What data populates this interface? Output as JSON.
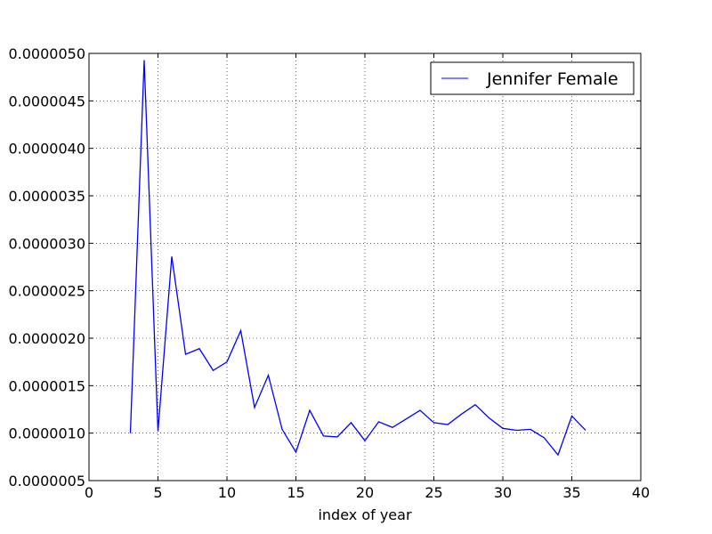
{
  "chart_data": {
    "type": "line",
    "title": "",
    "xlabel": "index of year",
    "ylabel": "",
    "xlim": [
      0,
      40
    ],
    "ylim": [
      5e-07,
      5e-06
    ],
    "x_ticks": [
      0,
      5,
      10,
      15,
      20,
      25,
      30,
      35,
      40
    ],
    "x_tick_labels": [
      "0",
      "5",
      "10",
      "15",
      "20",
      "25",
      "30",
      "35",
      "40"
    ],
    "y_ticks": [
      5e-07,
      1e-06,
      1.5e-06,
      2e-06,
      2.5e-06,
      3e-06,
      3.5e-06,
      4e-06,
      4.5e-06,
      5e-06
    ],
    "y_tick_labels": [
      "0.0000005",
      "0.0000010",
      "0.0000015",
      "0.0000020",
      "0.0000025",
      "0.0000030",
      "0.0000035",
      "0.0000040",
      "0.0000045",
      "0.0000050"
    ],
    "grid": true,
    "legend_position": "top-right",
    "series": [
      {
        "name": "Jennifer Female",
        "color": "#0000ff",
        "x": [
          3,
          4,
          5,
          6,
          7,
          8,
          9,
          10,
          11,
          12,
          13,
          14,
          15,
          16,
          17,
          18,
          19,
          20,
          21,
          22,
          23,
          24,
          25,
          26,
          27,
          28,
          29,
          30,
          31,
          32,
          33,
          34,
          35,
          36
        ],
        "y": [
          1e-06,
          4.93e-06,
          1.02e-06,
          2.86e-06,
          1.83e-06,
          1.89e-06,
          1.66e-06,
          1.75e-06,
          2.08e-06,
          1.27e-06,
          1.61e-06,
          1.04e-06,
          8e-07,
          1.24e-06,
          9.7e-07,
          9.6e-07,
          1.11e-06,
          9.2e-07,
          1.12e-06,
          1.06e-06,
          1.15e-06,
          1.24e-06,
          1.11e-06,
          1.09e-06,
          1.2e-06,
          1.3e-06,
          1.16e-06,
          1.05e-06,
          1.03e-06,
          1.04e-06,
          9.5e-07,
          7.7e-07,
          1.18e-06,
          1.03e-06
        ]
      }
    ]
  }
}
